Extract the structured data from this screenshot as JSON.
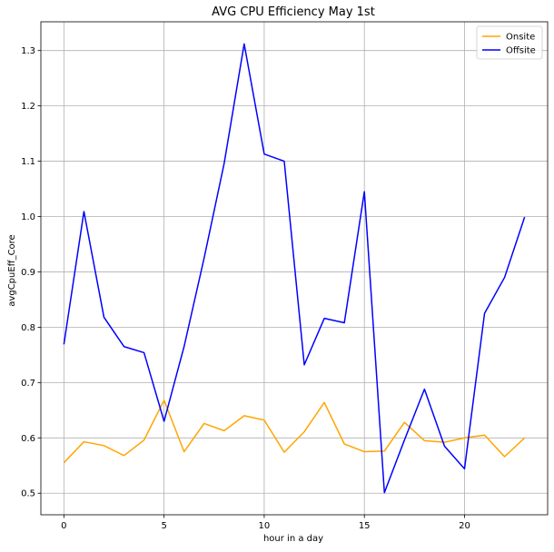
{
  "chart_data": {
    "type": "line",
    "title": "AVG CPU Efficiency May 1st",
    "xlabel": "hour in a day",
    "ylabel": "avgCpuEff_Core",
    "xlim": [
      -1.15,
      24.15
    ],
    "ylim": [
      0.461,
      1.352
    ],
    "xticks": [
      0,
      5,
      10,
      15,
      20
    ],
    "yticks": [
      0.5,
      0.6,
      0.7,
      0.8,
      0.9,
      1.0,
      1.1,
      1.2,
      1.3
    ],
    "ytick_labels": [
      "0.5",
      "0.6",
      "0.7",
      "0.8",
      "0.9",
      "1.0",
      "1.1",
      "1.2",
      "1.3"
    ],
    "grid": true,
    "legend_position": "top-right",
    "x": [
      0,
      1,
      2,
      3,
      4,
      5,
      6,
      7,
      8,
      9,
      10,
      11,
      12,
      13,
      14,
      15,
      16,
      17,
      18,
      19,
      20,
      21,
      22,
      23
    ],
    "series": [
      {
        "name": "Onsite",
        "color": "#ffa500",
        "values": [
          0.555,
          0.593,
          0.586,
          0.568,
          0.596,
          0.668,
          0.575,
          0.626,
          0.613,
          0.64,
          0.632,
          0.574,
          0.611,
          0.664,
          0.589,
          0.575,
          0.576,
          0.628,
          0.595,
          0.592,
          0.6,
          0.605,
          0.566,
          0.6
        ]
      },
      {
        "name": "Offsite",
        "color": "#0000ff",
        "values": [
          0.769,
          1.009,
          0.818,
          0.765,
          0.754,
          0.63,
          0.765,
          0.925,
          1.096,
          1.312,
          1.113,
          1.1,
          0.732,
          0.816,
          0.808,
          1.045,
          0.501,
          0.596,
          0.688,
          0.585,
          0.544,
          0.825,
          0.89,
          0.999
        ]
      }
    ]
  }
}
